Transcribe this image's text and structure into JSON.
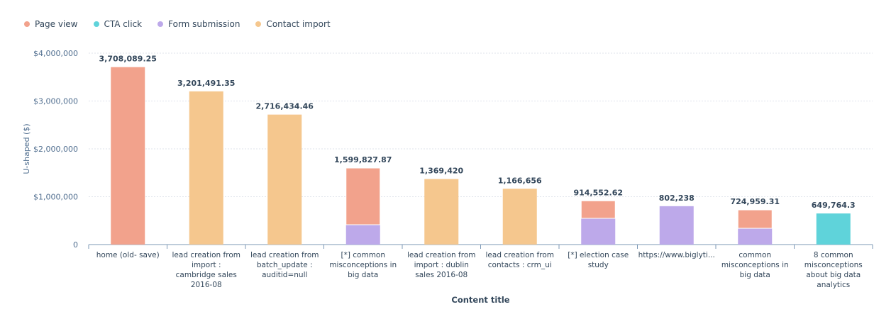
{
  "chart_data": {
    "type": "bar",
    "stacked": true,
    "xlabel": "Content title",
    "ylabel": "U-shaped ($)",
    "ylim": [
      0,
      4000000
    ],
    "yticks": [
      0,
      1000000,
      2000000,
      3000000,
      4000000
    ],
    "ytick_labels": [
      "0",
      "$1,000,000",
      "$2,000,000",
      "$3,000,000",
      "$4,000,000"
    ],
    "grid": true,
    "legend_position": "top-left",
    "categories": [
      [
        "home (old- save)"
      ],
      [
        "lead creation from",
        "import :",
        "cambridge sales",
        "2016-08"
      ],
      [
        "lead creation from",
        "batch_update :",
        "auditid=null"
      ],
      [
        "[*] common",
        "misconceptions in",
        "big data"
      ],
      [
        "lead creation from",
        "import : dublin",
        "sales 2016-08"
      ],
      [
        "lead creation from",
        "contacts : crm_ui"
      ],
      [
        "[*] election case",
        "study"
      ],
      [
        "https://www.biglyti..."
      ],
      [
        "common",
        "misconceptions in",
        "big data"
      ],
      [
        "8 common",
        "misconceptions",
        "about big data",
        "analytics"
      ]
    ],
    "totals": [
      "3,708,089.25",
      "3,201,491.35",
      "2,716,434.46",
      "1,599,827.87",
      "1,369,420",
      "1,166,656",
      "914,552.62",
      "802,238",
      "724,959.31",
      "649,764.3"
    ],
    "series": [
      {
        "name": "Form submission",
        "color": "#bda9ea",
        "values": [
          0,
          0,
          0,
          415000,
          0,
          0,
          548000,
          802238,
          340000,
          0
        ]
      },
      {
        "name": "Page view",
        "color": "#f2a28c",
        "values": [
          3708089.25,
          0,
          0,
          1184827.87,
          0,
          0,
          366552.62,
          0,
          384959.31,
          0
        ]
      },
      {
        "name": "CTA click",
        "color": "#5fd3da",
        "values": [
          0,
          0,
          0,
          0,
          0,
          0,
          0,
          0,
          0,
          649764.3
        ]
      },
      {
        "name": "Contact import",
        "color": "#f5c78e",
        "values": [
          0,
          3201491.35,
          2716434.46,
          0,
          1369420,
          1166656,
          0,
          0,
          0,
          0
        ]
      }
    ],
    "legend": [
      {
        "name": "Page view",
        "color": "#f2a28c"
      },
      {
        "name": "CTA click",
        "color": "#5fd3da"
      },
      {
        "name": "Form submission",
        "color": "#bda9ea"
      },
      {
        "name": "Contact import",
        "color": "#f5c78e"
      }
    ]
  }
}
